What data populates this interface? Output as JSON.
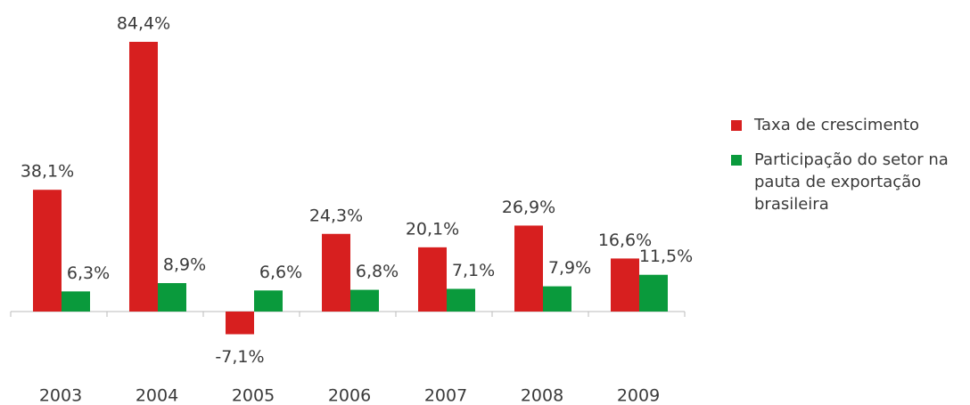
{
  "chart_data": {
    "type": "bar",
    "categories": [
      "2003",
      "2004",
      "2005",
      "2006",
      "2007",
      "2008",
      "2009"
    ],
    "series": [
      {
        "name": "Taxa de crescimento",
        "color": "#d71f1f",
        "values": [
          38.1,
          84.4,
          -7.1,
          24.3,
          20.1,
          26.9,
          16.6
        ],
        "value_labels": [
          "38,1%",
          "84,4%",
          "-7,1%",
          "24,3%",
          "20,1%",
          "26,9%",
          "16,6%"
        ]
      },
      {
        "name": "Participação do setor na pauta de exportação brasileira",
        "color": "#0a9a3c",
        "values": [
          6.3,
          8.9,
          6.6,
          6.8,
          7.1,
          7.9,
          11.5
        ],
        "value_labels": [
          "6,3%",
          "8,9%",
          "6,6%",
          "6,8%",
          "7,1%",
          "7,9%",
          "11,5%"
        ]
      }
    ],
    "legend": "right"
  }
}
